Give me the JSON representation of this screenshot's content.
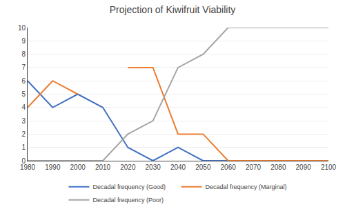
{
  "chart_data": {
    "type": "line",
    "title": "Projection of Kiwifruit Viability",
    "x": [
      1980,
      1990,
      2000,
      2010,
      2020,
      2030,
      2040,
      2050,
      2060,
      2070,
      2080,
      2090,
      2100
    ],
    "series": [
      {
        "name": "Decadal frequency (Good)",
        "color": "#4472C4",
        "values": [
          6,
          4,
          5,
          4,
          1,
          0,
          1,
          0,
          0,
          0,
          0,
          0,
          0
        ]
      },
      {
        "name": "Decadal frequency (Marginal)",
        "color": "#ED7D31",
        "values": [
          4,
          6,
          5,
          null,
          7,
          7,
          2,
          2,
          0,
          0,
          0,
          0,
          0
        ]
      },
      {
        "name": "Decadal frequency (Poor)",
        "color": "#A5A5A5",
        "values": [
          0,
          0,
          0,
          0,
          2,
          3,
          7,
          8,
          10,
          10,
          10,
          10,
          10
        ]
      }
    ],
    "xlim": [
      1980,
      2100
    ],
    "ylim": [
      0,
      10
    ],
    "xticks": [
      1980,
      1990,
      2000,
      2010,
      2020,
      2030,
      2040,
      2050,
      2060,
      2070,
      2080,
      2090,
      2100
    ],
    "yticks": [
      0,
      1,
      2,
      3,
      4,
      5,
      6,
      7,
      8,
      9,
      10
    ],
    "grid": "y",
    "legend": "bottom"
  }
}
